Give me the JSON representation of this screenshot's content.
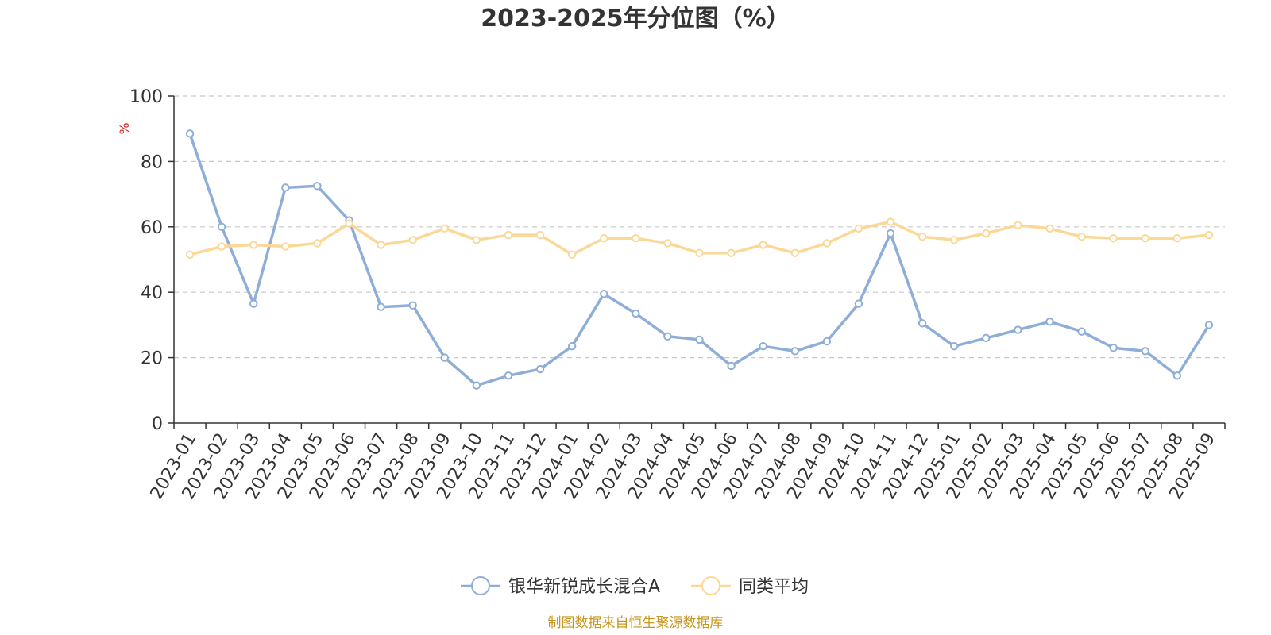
{
  "chart_data": {
    "type": "line",
    "title": "2023-2025年分位图（%）",
    "ylabel": "%",
    "ylim": [
      0,
      100
    ],
    "yticks": [
      0,
      20,
      40,
      60,
      80,
      100
    ],
    "grid": true,
    "legend_position": "bottom",
    "categories": [
      "2023-01",
      "2023-02",
      "2023-03",
      "2023-04",
      "2023-05",
      "2023-06",
      "2023-07",
      "2023-08",
      "2023-09",
      "2023-10",
      "2023-11",
      "2023-12",
      "2024-01",
      "2024-02",
      "2024-03",
      "2024-04",
      "2024-05",
      "2024-06",
      "2024-07",
      "2024-08",
      "2024-09",
      "2024-10",
      "2024-11",
      "2024-12",
      "2025-01",
      "2025-02",
      "2025-03",
      "2025-04",
      "2025-05",
      "2025-06",
      "2025-07",
      "2025-08",
      "2025-09"
    ],
    "series": [
      {
        "name": "银华新锐成长混合A",
        "color": "#8eaed8",
        "values": [
          88.5,
          60,
          36.5,
          72,
          72.5,
          62,
          35.5,
          36,
          20,
          11.5,
          14.5,
          16.5,
          23.5,
          39.5,
          33.5,
          26.5,
          25.5,
          17.5,
          23.5,
          22,
          25,
          36.5,
          58,
          30.5,
          23.5,
          26,
          28.5,
          31,
          28,
          23,
          22,
          14.5,
          30
        ]
      },
      {
        "name": "同类平均",
        "color": "#fbd896",
        "values": [
          51.5,
          54,
          54.5,
          54,
          55,
          61,
          54.5,
          56,
          59.5,
          56,
          57.5,
          57.5,
          51.5,
          56.5,
          56.5,
          55,
          52,
          52,
          54.5,
          52,
          55,
          59.5,
          61.5,
          57,
          56,
          58,
          60.5,
          59.5,
          57,
          56.5,
          56.5,
          56.5,
          57.5
        ]
      }
    ]
  },
  "source": {
    "text": "制图数据来自恒生聚源数据库",
    "color": "#c8961e"
  }
}
